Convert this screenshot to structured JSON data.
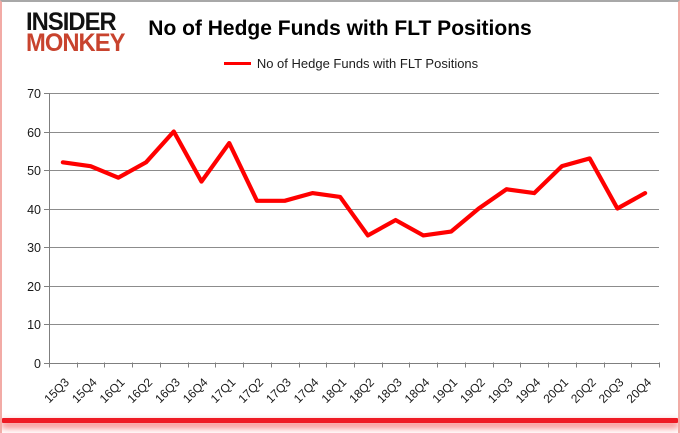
{
  "brand": {
    "line1": "INSIDER",
    "line2": "MONKEY",
    "line1_color": "#121212",
    "line2_color": "#c8432e"
  },
  "header": {
    "title": "No of Hedge Funds with FLT Positions"
  },
  "legend": {
    "label": "No of Hedge Funds with FLT Positions",
    "line_color": "#ff0000"
  },
  "chart_data": {
    "type": "line",
    "title": "No of Hedge Funds with FLT Positions",
    "categories": [
      "15Q3",
      "15Q4",
      "16Q1",
      "16Q2",
      "16Q3",
      "16Q4",
      "17Q1",
      "17Q2",
      "17Q3",
      "17Q4",
      "18Q1",
      "18Q2",
      "18Q3",
      "18Q4",
      "19Q1",
      "19Q2",
      "19Q3",
      "19Q4",
      "20Q1",
      "20Q2",
      "20Q3",
      "20Q4"
    ],
    "series": [
      {
        "name": "No of Hedge Funds with FLT Positions",
        "color": "#ff0000",
        "values": [
          52,
          51,
          48,
          52,
          60,
          47,
          57,
          42,
          42,
          44,
          43,
          33,
          37,
          33,
          34,
          40,
          45,
          44,
          51,
          53,
          40,
          44
        ]
      }
    ],
    "xlabel": "",
    "ylabel": "",
    "ylim": [
      0,
      70
    ],
    "ytick_step": 10,
    "grid": true,
    "legend_position": "top",
    "gridline_color": "#8c8c8c",
    "axis_color": "#7f7f7f",
    "tick_label_color": "#1a1a1a"
  }
}
